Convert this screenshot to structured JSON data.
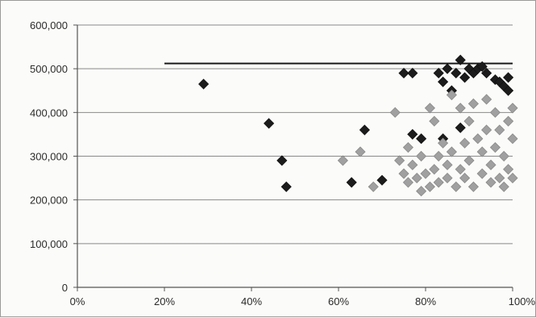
{
  "chart_data": {
    "type": "scatter",
    "title": "",
    "xlabel": "",
    "ylabel": "",
    "xlim": [
      0,
      100
    ],
    "ylim": [
      0,
      600000
    ],
    "x_ticks": [
      0,
      20,
      40,
      60,
      80,
      100
    ],
    "x_tick_labels": [
      "0%",
      "20%",
      "40%",
      "60%",
      "80%",
      "100%"
    ],
    "y_ticks": [
      0,
      100000,
      200000,
      300000,
      400000,
      500000,
      600000
    ],
    "y_tick_labels": [
      "0",
      "100,000",
      "200,000",
      "300,000",
      "400,000",
      "500,000",
      "600,000"
    ],
    "grid": true,
    "legend": "none",
    "reference_line": {
      "x": [
        20,
        100
      ],
      "y": 512000,
      "color": "#1a1a1a"
    },
    "series": [
      {
        "marker": "diamond",
        "color": "#1c1c1c",
        "points": [
          [
            29,
            465000
          ],
          [
            44,
            375000
          ],
          [
            47,
            290000
          ],
          [
            48,
            230000
          ],
          [
            63,
            240000
          ],
          [
            66,
            360000
          ],
          [
            70,
            245000
          ],
          [
            75,
            490000
          ],
          [
            77,
            490000
          ],
          [
            77,
            350000
          ],
          [
            79,
            340000
          ],
          [
            83,
            490000
          ],
          [
            84,
            470000
          ],
          [
            84,
            340000
          ],
          [
            85,
            500000
          ],
          [
            86,
            450000
          ],
          [
            87,
            490000
          ],
          [
            88,
            520000
          ],
          [
            88,
            365000
          ],
          [
            89,
            480000
          ],
          [
            90,
            500000
          ],
          [
            91,
            490000
          ],
          [
            92,
            500000
          ],
          [
            93,
            505000
          ],
          [
            94,
            490000
          ],
          [
            96,
            475000
          ],
          [
            97,
            470000
          ],
          [
            98,
            460000
          ],
          [
            99,
            480000
          ],
          [
            99,
            450000
          ]
        ]
      },
      {
        "marker": "diamond",
        "color": "#a0a0a0",
        "points": [
          [
            61,
            290000
          ],
          [
            65,
            310000
          ],
          [
            68,
            230000
          ],
          [
            73,
            400000
          ],
          [
            74,
            290000
          ],
          [
            75,
            260000
          ],
          [
            76,
            240000
          ],
          [
            76,
            320000
          ],
          [
            77,
            280000
          ],
          [
            78,
            250000
          ],
          [
            79,
            300000
          ],
          [
            79,
            220000
          ],
          [
            80,
            260000
          ],
          [
            81,
            410000
          ],
          [
            81,
            230000
          ],
          [
            82,
            380000
          ],
          [
            82,
            270000
          ],
          [
            83,
            300000
          ],
          [
            83,
            240000
          ],
          [
            84,
            330000
          ],
          [
            85,
            280000
          ],
          [
            85,
            250000
          ],
          [
            86,
            440000
          ],
          [
            86,
            310000
          ],
          [
            87,
            230000
          ],
          [
            88,
            410000
          ],
          [
            88,
            270000
          ],
          [
            89,
            330000
          ],
          [
            89,
            250000
          ],
          [
            90,
            380000
          ],
          [
            90,
            290000
          ],
          [
            91,
            230000
          ],
          [
            91,
            420000
          ],
          [
            92,
            340000
          ],
          [
            93,
            310000
          ],
          [
            93,
            260000
          ],
          [
            94,
            360000
          ],
          [
            94,
            430000
          ],
          [
            95,
            280000
          ],
          [
            95,
            240000
          ],
          [
            96,
            400000
          ],
          [
            96,
            320000
          ],
          [
            97,
            250000
          ],
          [
            97,
            360000
          ],
          [
            98,
            300000
          ],
          [
            98,
            230000
          ],
          [
            99,
            380000
          ],
          [
            99,
            270000
          ],
          [
            100,
            340000
          ],
          [
            100,
            250000
          ],
          [
            100,
            410000
          ]
        ]
      }
    ]
  }
}
